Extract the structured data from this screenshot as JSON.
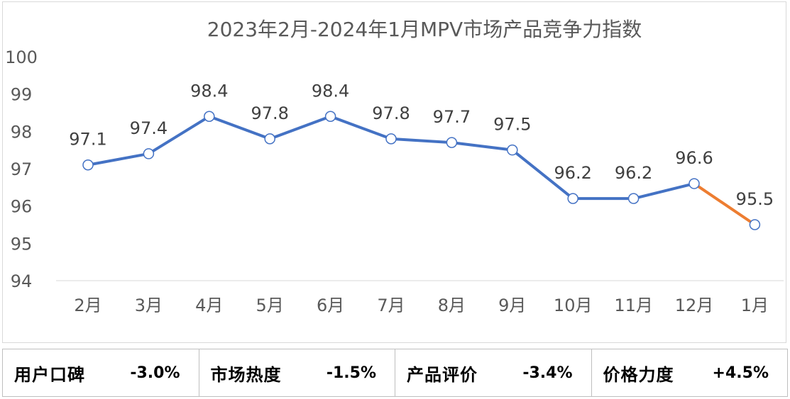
{
  "chart_data": {
    "type": "line",
    "title": "2023年2月-2024年1月MPV市场产品竞争力指数",
    "categories": [
      "2月",
      "3月",
      "4月",
      "5月",
      "6月",
      "7月",
      "8月",
      "9月",
      "10月",
      "11月",
      "12月",
      "1月"
    ],
    "values": [
      97.1,
      97.4,
      98.4,
      97.8,
      98.4,
      97.8,
      97.7,
      97.5,
      96.2,
      96.2,
      96.6,
      95.5
    ],
    "data_labels": [
      "97.1",
      "97.4",
      "98.4",
      "97.8",
      "98.4",
      "97.8",
      "97.7",
      "97.5",
      "96.2",
      "96.2",
      "96.6",
      "95.5"
    ],
    "ylim": [
      94,
      100
    ],
    "yticks": [
      "94",
      "95",
      "96",
      "97",
      "98",
      "99",
      "100"
    ],
    "grid": false,
    "legend": "none",
    "line_color": "#4472c4",
    "last_segment_color": "#ed7d31"
  },
  "summary": [
    {
      "name": "用户口碑",
      "value": "-3.0%"
    },
    {
      "name": "市场热度",
      "value": "-1.5%"
    },
    {
      "name": "产品评价",
      "value": "-3.4%"
    },
    {
      "name": "价格力度",
      "value": "+4.5%"
    }
  ]
}
